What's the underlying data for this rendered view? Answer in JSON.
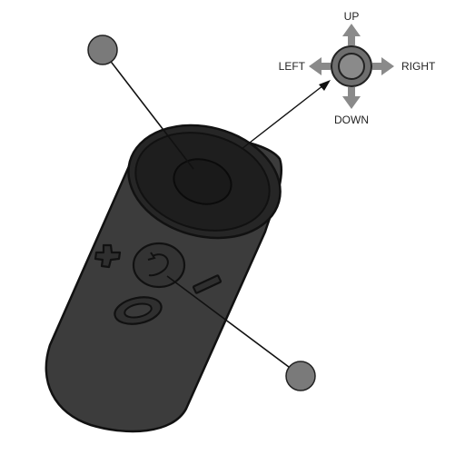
{
  "dpad_labels": {
    "up": "UP",
    "down": "DOWN",
    "left": "LEFT",
    "right": "RIGHT"
  },
  "colors": {
    "body": "#3c3c3c",
    "top_ring": "#262626",
    "touchpad": "#1e1e1e",
    "outline": "#111111",
    "callout_dot": "#7a7a7a",
    "dpad_arrow": "#8a8a8a",
    "dpad_button": "#6e6e6e"
  },
  "icons": {
    "volume_up": "plus-icon",
    "volume_down": "minus-icon",
    "back": "back-arrow-icon",
    "home": "oculus-logo-icon"
  }
}
